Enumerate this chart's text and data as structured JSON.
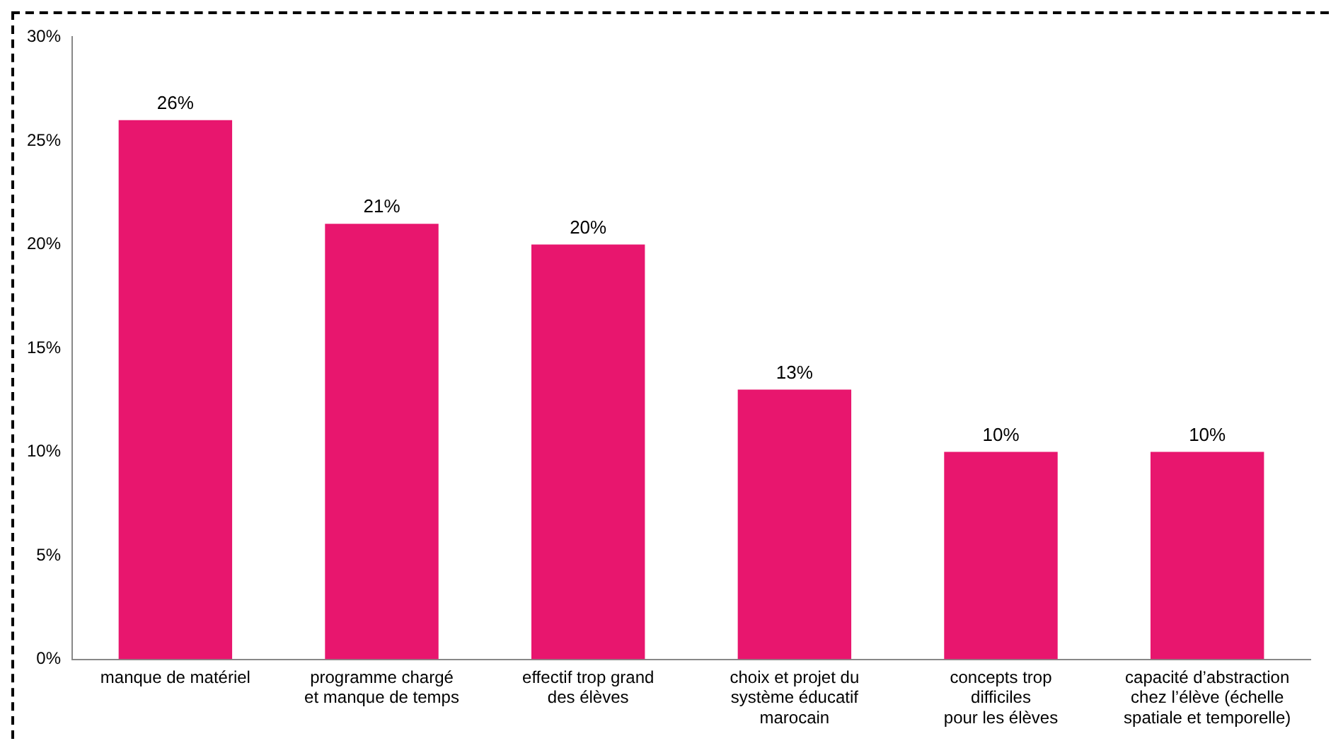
{
  "chart_data": {
    "type": "bar",
    "categories": [
      "manque de matériel",
      "programme chargé\net manque de temps",
      "effectif trop grand\ndes élèves",
      "choix et projet du\nsystème éducatif\nmarocain",
      "concepts trop\ndifficiles\npour les élèves",
      "capacité d’abstraction\nchez l’élève (échelle\nspatiale et temporelle)"
    ],
    "values": [
      26,
      21,
      20,
      13,
      10,
      10
    ],
    "value_labels": [
      "26%",
      "21%",
      "20%",
      "13%",
      "10%",
      "10%"
    ],
    "color": "#e8166e",
    "ylim": [
      0,
      30
    ],
    "yticks": [
      {
        "value": 0,
        "label": "0%"
      },
      {
        "value": 5,
        "label": "5%"
      },
      {
        "value": 10,
        "label": "10%"
      },
      {
        "value": 15,
        "label": "15%"
      },
      {
        "value": 20,
        "label": "20%"
      },
      {
        "value": 25,
        "label": "25%"
      },
      {
        "value": 30,
        "label": "30%"
      }
    ],
    "grid": false,
    "legend": false
  }
}
